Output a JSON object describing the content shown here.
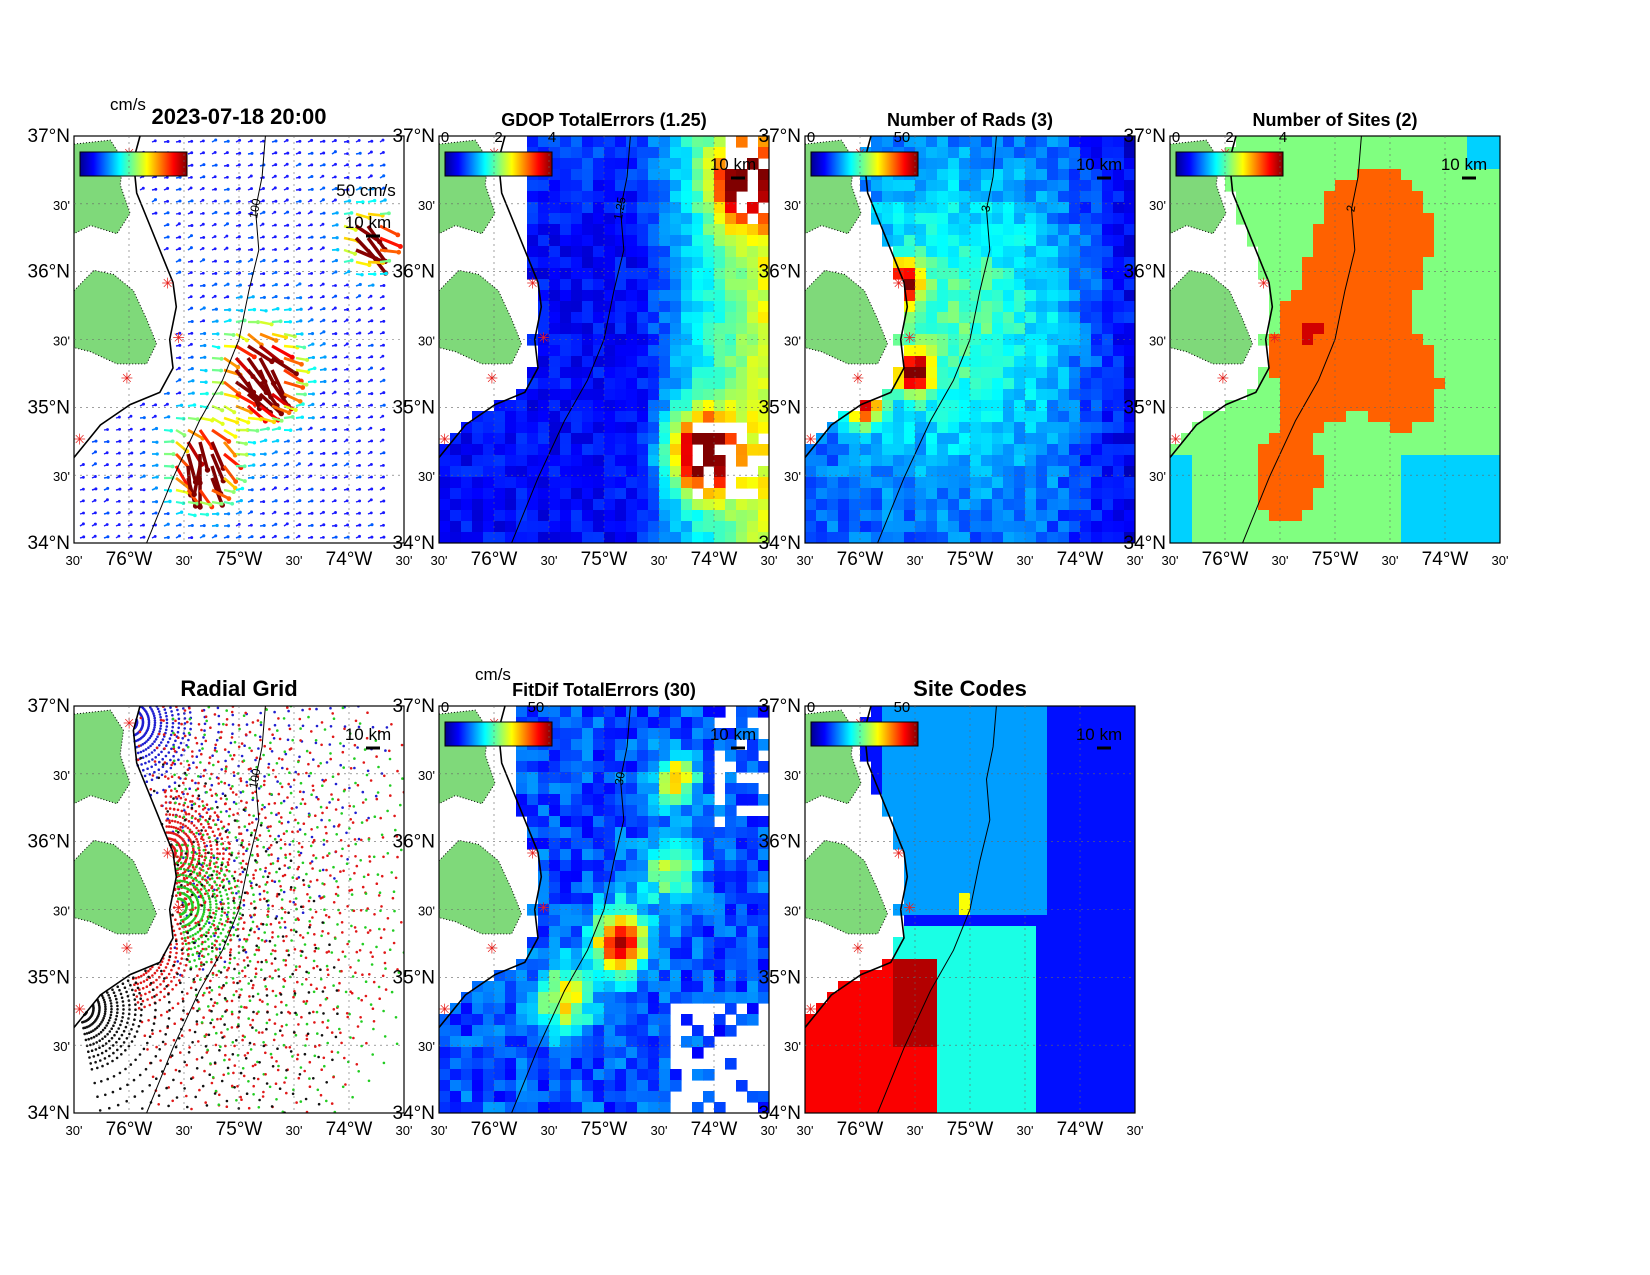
{
  "figure": {
    "panels": [
      {
        "id": "surface-currents",
        "title": "2023-07-18 20:00",
        "colorbar": {
          "unit": "cm/s",
          "labels": []
        },
        "scale_label": "10 km",
        "reference_vector_label": "50 cm/s",
        "contour_label": "100",
        "field": "vectors"
      },
      {
        "id": "gdop-total-errors",
        "title": "GDOP TotalErrors (1.25)",
        "colorbar": {
          "unit": "",
          "labels": [
            "0",
            "2",
            "4"
          ]
        },
        "scale_label": "10 km",
        "contour_label": "1.25",
        "field": "gdop"
      },
      {
        "id": "number-of-rads",
        "title": "Number of Rads (3)",
        "colorbar": {
          "unit": "",
          "labels": [
            "0",
            "50"
          ]
        },
        "scale_label": "10 km",
        "contour_label": "3",
        "field": "rads"
      },
      {
        "id": "number-of-sites",
        "title": "Number of Sites (2)",
        "colorbar": {
          "unit": "",
          "labels": [
            "0",
            "2",
            "4"
          ]
        },
        "scale_label": "10 km",
        "contour_label": "2",
        "field": "sites"
      },
      {
        "id": "radial-grid",
        "title": "Radial Grid",
        "colorbar": null,
        "scale_label": "10 km",
        "contour_label": "100",
        "field": "radial"
      },
      {
        "id": "fitdif-total-errors",
        "title": "FitDif TotalErrors (30)",
        "colorbar": {
          "unit": "cm/s",
          "labels": [
            "0",
            "50"
          ]
        },
        "scale_label": "10 km",
        "contour_label": "30",
        "field": "fitdif"
      },
      {
        "id": "site-codes",
        "title": "Site Codes",
        "colorbar": {
          "unit": "",
          "labels": [
            "0",
            "50"
          ]
        },
        "scale_label": "10 km",
        "contour_label": "",
        "field": "sitecodes"
      }
    ],
    "axes": {
      "lat_labels": [
        "37°N",
        "30'",
        "36°N",
        "30'",
        "35°N",
        "30'",
        "34°N"
      ],
      "lon_labels": [
        "30'",
        "76°W",
        "30'",
        "75°W",
        "30'",
        "74°W",
        "30'"
      ],
      "lat_range": [
        34,
        37
      ],
      "lon_range": [
        -76.5,
        -73.5
      ]
    },
    "radar_sites": [
      {
        "lon": -76.0,
        "lat": 36.88
      },
      {
        "lon": -75.65,
        "lat": 35.92
      },
      {
        "lon": -75.55,
        "lat": 35.52
      },
      {
        "lon": -76.02,
        "lat": 35.22
      },
      {
        "lon": -76.45,
        "lat": 34.77
      }
    ],
    "colors": {
      "land": "#7fd97a",
      "coast": "#000000",
      "site_marker": "#e8201c",
      "radial_site_colors": [
        "#1f1fd0",
        "#e01818",
        "#22cc22",
        "#e01818",
        "#111111"
      ]
    }
  }
}
